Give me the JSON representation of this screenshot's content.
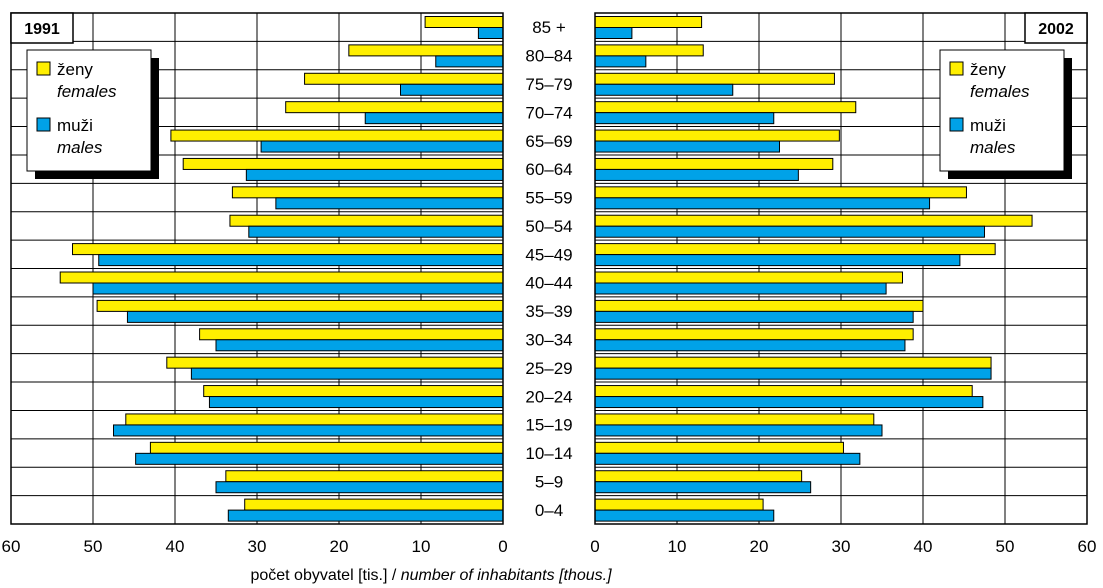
{
  "chart_data": {
    "type": "bar",
    "orientation": "horizontal",
    "layout": "population-pyramid",
    "xlabel_plain": "počet obyvatel [tis.] / ",
    "xlabel_italic": "number of inhabitants [thous.]",
    "xlim": [
      0,
      60
    ],
    "x_ticks": [
      "60",
      "50",
      "40",
      "30",
      "20",
      "10",
      "0",
      "0",
      "10",
      "20",
      "30",
      "40",
      "50",
      "60"
    ],
    "grid": true,
    "categories": [
      "85 +",
      "80–84",
      "75–79",
      "70–74",
      "65–69",
      "60–64",
      "55–59",
      "50–54",
      "45–49",
      "40–44",
      "35–39",
      "30–34",
      "25–29",
      "20–24",
      "15–19",
      "10–14",
      "5–9",
      "0–4"
    ],
    "panels": [
      {
        "year": "1991",
        "side": "left",
        "legend_position": "top-left",
        "females": [
          9.5,
          18.8,
          24.2,
          26.5,
          40.5,
          39.0,
          33.0,
          33.3,
          52.5,
          54.0,
          49.5,
          37.0,
          41.0,
          36.5,
          46.0,
          43.0,
          33.8,
          31.5
        ],
        "males": [
          3.0,
          8.2,
          12.5,
          16.8,
          29.5,
          31.3,
          27.7,
          31.0,
          49.3,
          50.0,
          45.8,
          35.0,
          38.0,
          35.8,
          47.5,
          44.8,
          35.0,
          33.5
        ]
      },
      {
        "year": "2002",
        "side": "right",
        "legend_position": "top-right",
        "females": [
          13.0,
          13.2,
          29.2,
          31.8,
          29.8,
          29.0,
          45.3,
          53.3,
          48.8,
          37.5,
          40.0,
          38.8,
          48.3,
          46.0,
          34.0,
          30.3,
          25.2,
          20.5
        ],
        "males": [
          4.5,
          6.2,
          16.8,
          21.8,
          22.5,
          24.8,
          40.8,
          47.5,
          44.5,
          35.5,
          38.8,
          37.8,
          48.3,
          47.3,
          35.0,
          32.3,
          26.3,
          21.8
        ]
      }
    ],
    "series": [
      {
        "key": "females",
        "label_cz": "ženy",
        "label_en": "females",
        "color": "#ffef00"
      },
      {
        "key": "males",
        "label_cz": "muži",
        "label_en": "males",
        "color": "#00a2e8"
      }
    ]
  }
}
